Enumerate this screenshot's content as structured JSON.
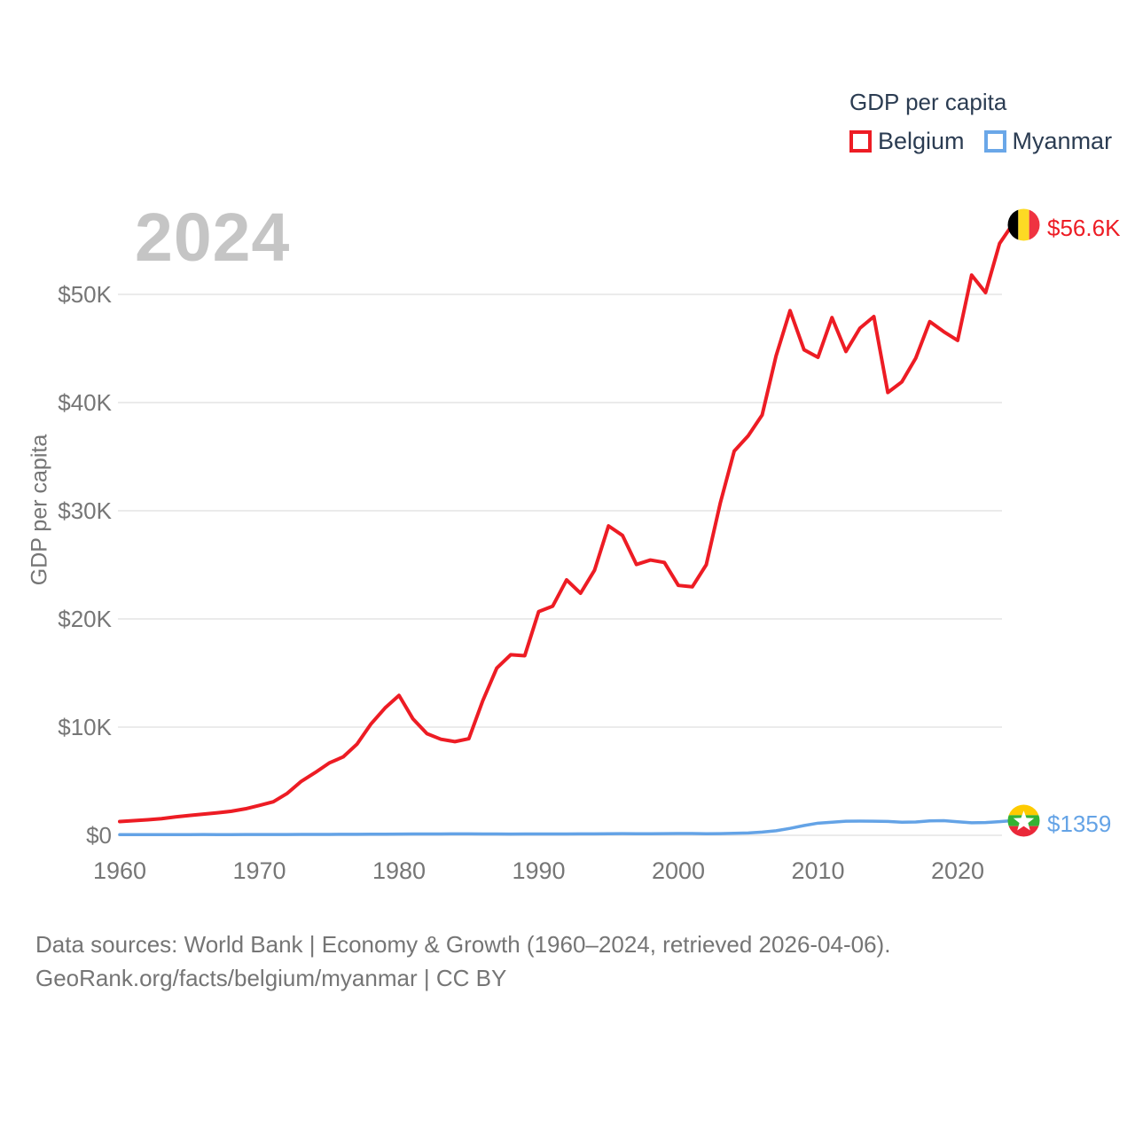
{
  "page": {
    "background": "#ffffff"
  },
  "watermark": "2024",
  "legend": {
    "title": "GDP per capita",
    "items": [
      {
        "label": "Belgium",
        "color": "#ed1c24"
      },
      {
        "label": "Myanmar",
        "color": "#6aa7e8"
      }
    ]
  },
  "chart_data": {
    "type": "line",
    "title": "GDP per capita",
    "xlabel": "",
    "ylabel": "GDP per capita",
    "xlim": [
      1960,
      2024
    ],
    "ylim": [
      0,
      56600
    ],
    "grid": "horizontal",
    "legend_position": "top-right",
    "x_ticks": [
      "1960",
      "1970",
      "1980",
      "1990",
      "2000",
      "2010",
      "2020"
    ],
    "y_ticks": [
      {
        "value": 0,
        "label": "$0"
      },
      {
        "value": 10000,
        "label": "$10K"
      },
      {
        "value": 20000,
        "label": "$20K"
      },
      {
        "value": 30000,
        "label": "$30K"
      },
      {
        "value": 40000,
        "label": "$40K"
      },
      {
        "value": 50000,
        "label": "$50K"
      }
    ],
    "x": [
      1960,
      1961,
      1962,
      1963,
      1964,
      1965,
      1966,
      1967,
      1968,
      1969,
      1970,
      1971,
      1972,
      1973,
      1974,
      1975,
      1976,
      1977,
      1978,
      1979,
      1980,
      1981,
      1982,
      1983,
      1984,
      1985,
      1986,
      1987,
      1988,
      1989,
      1990,
      1991,
      1992,
      1993,
      1994,
      1995,
      1996,
      1997,
      1998,
      1999,
      2000,
      2001,
      2002,
      2003,
      2004,
      2005,
      2006,
      2007,
      2008,
      2009,
      2010,
      2011,
      2012,
      2013,
      2014,
      2015,
      2016,
      2017,
      2018,
      2019,
      2020,
      2021,
      2022,
      2023,
      2024
    ],
    "series": [
      {
        "name": "Belgium",
        "color": "#ed1c24",
        "end_label": "$56.6K",
        "end_value": 56600,
        "flag_icon": "belgium-flag",
        "values": [
          1274,
          1351,
          1438,
          1536,
          1697,
          1836,
          1956,
          2078,
          2221,
          2447,
          2766,
          3102,
          3880,
          4988,
          5802,
          6682,
          7246,
          8440,
          10305,
          11770,
          12928,
          10754,
          9392,
          8877,
          8658,
          8926,
          12450,
          15459,
          16690,
          16600,
          20676,
          21176,
          23607,
          22376,
          24506,
          28598,
          27722,
          25034,
          25444,
          25222,
          23099,
          22970,
          25010,
          30694,
          35510,
          36924,
          38852,
          44324,
          48502,
          44882,
          44184,
          47856,
          44722,
          46877,
          47951,
          40935,
          41911,
          44109,
          47485,
          46556,
          45743,
          51783,
          50168,
          54701,
          56600
        ]
      },
      {
        "name": "Myanmar",
        "color": "#64a3e6",
        "end_label": "$1359",
        "end_value": 1359,
        "flag_icon": "myanmar-flag",
        "values": [
          58,
          60,
          61,
          62,
          64,
          66,
          67,
          64,
          65,
          68,
          72,
          74,
          71,
          78,
          84,
          87,
          89,
          93,
          98,
          104,
          112,
          118,
          123,
          128,
          132,
          130,
          127,
          120,
          115,
          120,
          124,
          121,
          125,
          130,
          137,
          145,
          152,
          148,
          141,
          152,
          165,
          160,
          143,
          152,
          181,
          220,
          300,
          420,
          640,
          900,
          1120,
          1210,
          1300,
          1310,
          1300,
          1280,
          1210,
          1230,
          1330,
          1350,
          1250,
          1160,
          1180,
          1260,
          1359
        ]
      }
    ]
  },
  "footer": {
    "line1": "Data sources: World Bank | Economy & Growth (1960–2024, retrieved 2026-04-06).",
    "line2": "GeoRank.org/facts/belgium/myanmar | CC BY"
  }
}
